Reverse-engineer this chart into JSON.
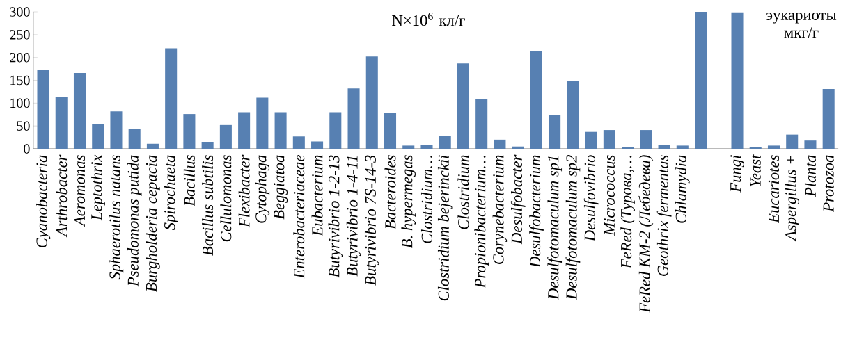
{
  "chart_data": {
    "type": "bar",
    "categories": [
      "Cyanobacteria",
      "Arthrobacter",
      "Aeromonas",
      "Leptothrix",
      "Sphaerotilus natans",
      "Pseudomonas putida",
      "Burgholderia cepacia",
      "Spirochaeta",
      "Bacillus",
      "Bacillus subtilis",
      "Cellulomonas",
      "Flexibacter",
      "Cytophaga",
      "Beggiatoa",
      "Enterobacteriaceae",
      "Eubacterium",
      "Butyrivibrio 1-2-13",
      "Butyrivibrio 1-4-11",
      "Butyrivibrio 7S-14-3",
      "Bacteroides",
      "B. hypermegas",
      "Clostridium…",
      "Clostridium bejerinckii",
      "Clostridium",
      "Propionibacterium…",
      "Corynebacterium",
      "Desulfobacter",
      "Desulfobacterium",
      "Desulfotomaculum sp1",
      "Desulfotomaculum sp2",
      "Desulfovibrio",
      "Micrococcus",
      "FeRed (Турова,…",
      "FeRed KM-2 (Лебедева)",
      "Geothrix fermentas",
      "Chlamydia",
      null,
      null,
      "Fungi",
      "Yeast",
      "Eucariotes",
      "Aspergillus +",
      "Planta",
      "Protozoa"
    ],
    "values": [
      172,
      114,
      166,
      54,
      82,
      43,
      11,
      220,
      76,
      14,
      52,
      80,
      112,
      80,
      27,
      16,
      80,
      132,
      202,
      78,
      7,
      9,
      28,
      187,
      108,
      20,
      5,
      213,
      74,
      148,
      37,
      41,
      3,
      41,
      9,
      7,
      300,
      null,
      299,
      3,
      7,
      31,
      18,
      131
    ],
    "color": "#5780b2",
    "ylim": [
      0,
      300
    ],
    "yticks": [
      0,
      50,
      100,
      150,
      200,
      250,
      300
    ],
    "annotations": [
      "N×10$^{6}$ кл/г",
      "эукариоты мкг/г"
    ]
  }
}
